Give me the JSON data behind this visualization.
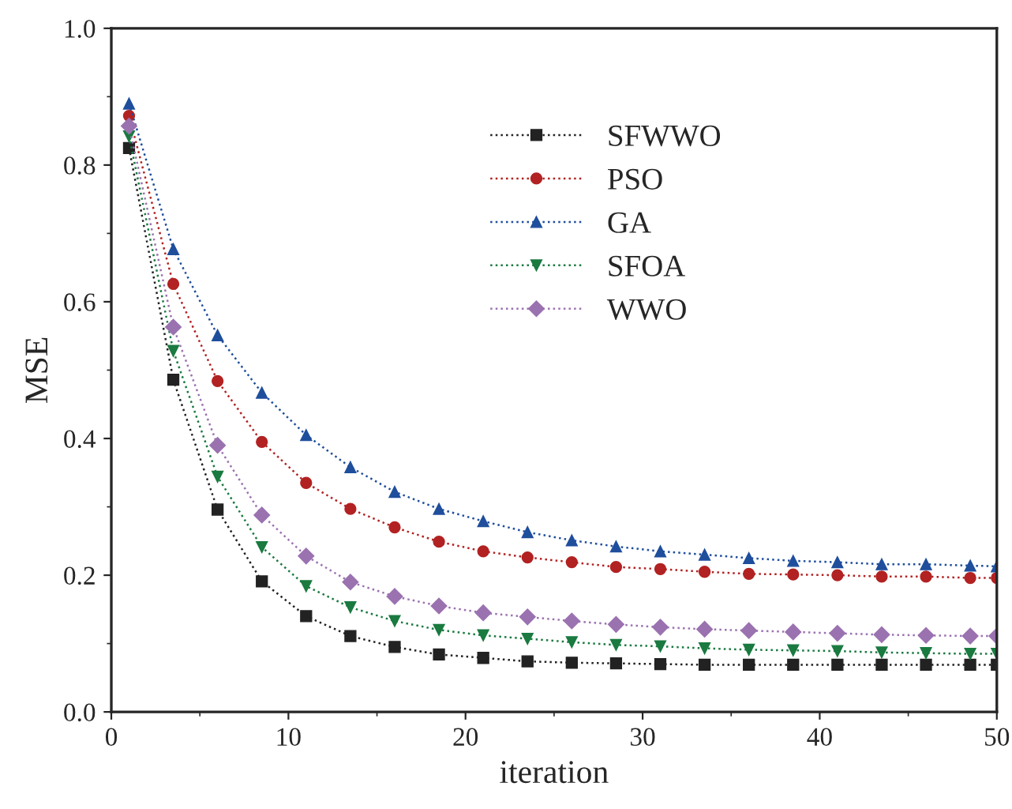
{
  "chart_data": {
    "type": "line",
    "xlabel": "iteration",
    "ylabel": "MSE",
    "x": [
      1,
      3.5,
      6,
      8.5,
      11,
      13.5,
      16,
      18.5,
      21,
      23.5,
      26,
      28.5,
      31,
      33.5,
      36,
      38.5,
      41,
      43.5,
      46,
      48.5,
      50
    ],
    "series": [
      {
        "name": "SFWWO",
        "color": "#222222",
        "marker": "square",
        "values": [
          0.825,
          0.486,
          0.296,
          0.191,
          0.14,
          0.111,
          0.095,
          0.084,
          0.079,
          0.074,
          0.072,
          0.071,
          0.07,
          0.069,
          0.069,
          0.069,
          0.069,
          0.069,
          0.069,
          0.069,
          0.069
        ]
      },
      {
        "name": "PSO",
        "color": "#b22222",
        "marker": "circle",
        "values": [
          0.872,
          0.626,
          0.484,
          0.395,
          0.335,
          0.297,
          0.27,
          0.249,
          0.235,
          0.226,
          0.219,
          0.212,
          0.209,
          0.205,
          0.202,
          0.201,
          0.2,
          0.198,
          0.198,
          0.196,
          0.196
        ]
      },
      {
        "name": "GA",
        "color": "#1f4e9c",
        "marker": "triangle",
        "values": [
          0.89,
          0.677,
          0.551,
          0.467,
          0.405,
          0.358,
          0.322,
          0.297,
          0.279,
          0.263,
          0.251,
          0.242,
          0.235,
          0.23,
          0.225,
          0.221,
          0.219,
          0.216,
          0.216,
          0.214,
          0.213
        ]
      },
      {
        "name": "SFOA",
        "color": "#1a7a40",
        "marker": "triangle_down",
        "values": [
          0.842,
          0.528,
          0.344,
          0.241,
          0.184,
          0.153,
          0.133,
          0.12,
          0.112,
          0.107,
          0.102,
          0.098,
          0.096,
          0.093,
          0.091,
          0.09,
          0.089,
          0.087,
          0.086,
          0.085,
          0.085
        ]
      },
      {
        "name": "WWO",
        "color": "#9b72b0",
        "marker": "diamond",
        "values": [
          0.857,
          0.563,
          0.39,
          0.288,
          0.228,
          0.19,
          0.169,
          0.155,
          0.145,
          0.139,
          0.133,
          0.128,
          0.124,
          0.121,
          0.119,
          0.117,
          0.115,
          0.113,
          0.112,
          0.111,
          0.111
        ]
      }
    ],
    "line_style": "dotted",
    "xlim": [
      0,
      50
    ],
    "xticks": [
      0,
      10,
      20,
      30,
      40,
      50
    ],
    "ylim": [
      0.0,
      1.0
    ],
    "yticks": [
      {
        "value": 0.0,
        "label": "0.0"
      },
      {
        "value": 0.2,
        "label": "0.2"
      },
      {
        "value": 0.4,
        "label": "0.4"
      },
      {
        "value": 0.6,
        "label": "0.6"
      },
      {
        "value": 0.8,
        "label": "0.8"
      },
      {
        "value": 1.0,
        "label": "1.0"
      }
    ],
    "grid": false,
    "legend": "top right"
  }
}
